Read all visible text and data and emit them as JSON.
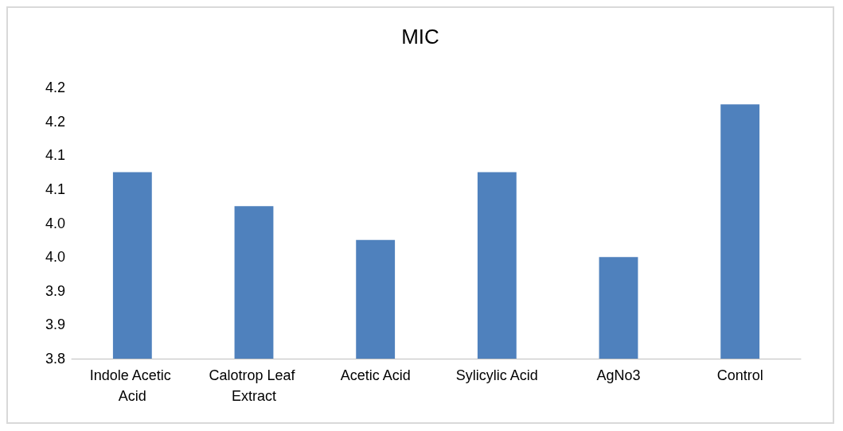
{
  "chart_data": {
    "type": "bar",
    "title": "MIC",
    "categories": [
      "Indole Acetic Acid",
      "Calotrop Leaf Extract",
      "Acetic Acid",
      "Sylicylic Acid",
      "AgNo3",
      "Control"
    ],
    "values": [
      4.075,
      4.025,
      3.975,
      4.075,
      3.95,
      4.175
    ],
    "color": "#4f81bd",
    "ylim": [
      3.8,
      4.2
    ],
    "yticks": [
      {
        "value": 3.8,
        "label": "3.8"
      },
      {
        "value": 3.85,
        "label": "3.9"
      },
      {
        "value": 3.9,
        "label": "3.9"
      },
      {
        "value": 3.95,
        "label": "4.0"
      },
      {
        "value": 4.0,
        "label": "4.0"
      },
      {
        "value": 4.05,
        "label": "4.1"
      },
      {
        "value": 4.1,
        "label": "4.1"
      },
      {
        "value": 4.15,
        "label": "4.2"
      },
      {
        "value": 4.2,
        "label": "4.2"
      }
    ],
    "grid": false
  }
}
